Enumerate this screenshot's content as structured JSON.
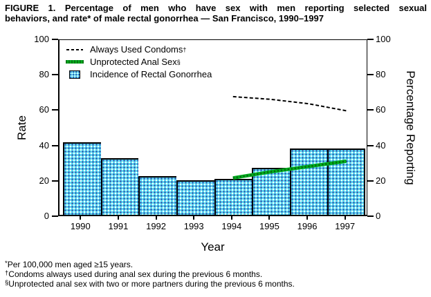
{
  "title": {
    "line1": "FIGURE 1. Percentage of men who have sex with men reporting selected sexual",
    "line2": "behaviors, and rate* of male rectal gonorrhea — San Francisco, 1990–1997"
  },
  "chart_data": {
    "type": "combo",
    "title": "FIGURE 1. Percentage of men who have sex with men reporting selected sexual behaviors, and rate* of male rectal gonorrhea — San Francisco, 1990–1997",
    "categories": [
      "1990",
      "1991",
      "1992",
      "1993",
      "1994",
      "1995",
      "1996",
      "1997"
    ],
    "bar_series": {
      "name": "Incidence of Rectal Gonorrhea",
      "axis": "left",
      "values": [
        41,
        32,
        22,
        19.5,
        20.5,
        26.5,
        37.5,
        37.5
      ],
      "fill_color": "#5ddcf2",
      "hatch_dot_colors": [
        "#2a36a0",
        "#ffffff"
      ]
    },
    "line_series": [
      {
        "name": "Always Used Condoms",
        "footnote_symbol": "†",
        "axis": "right",
        "x": [
          "1994",
          "1995",
          "1996",
          "1997"
        ],
        "values": [
          68,
          66.5,
          64,
          60
        ],
        "style": "dashed",
        "color": "#000000"
      },
      {
        "name": "Unprotected Anal Sex",
        "footnote_symbol": "§",
        "axis": "right",
        "x": [
          "1994",
          "1995",
          "1996",
          "1997"
        ],
        "values": [
          22,
          25.5,
          28.5,
          31.5
        ],
        "style": "solid-thick",
        "color": "#00ac1e",
        "texture_color": "#085f10"
      }
    ],
    "left_axis": {
      "label": "Rate",
      "min": 0,
      "max": 100,
      "ticks": [
        0,
        20,
        40,
        60,
        80,
        100
      ]
    },
    "right_axis": {
      "label": "Percentage Reporting",
      "min": 0,
      "max": 100,
      "ticks": [
        0,
        20,
        40,
        60,
        80,
        100
      ]
    },
    "x_axis": {
      "label": "Year"
    },
    "legend": {
      "position": "top-left-inside",
      "items": [
        {
          "label": "Always Used Condoms",
          "sup": "†",
          "swatch": "dashed-line"
        },
        {
          "label": "Unprotected Anal Sex",
          "sup": "§",
          "swatch": "green-line"
        },
        {
          "label": "Incidence of Rectal Gonorrhea",
          "sup": "",
          "swatch": "hatched-box"
        }
      ]
    },
    "grid": false
  },
  "footnotes": [
    {
      "sup": "*",
      "text": "Per 100,000 men aged ≥15 years."
    },
    {
      "sup": "†",
      "text": "Condoms always used during anal sex during the previous 6 months."
    },
    {
      "sup": "§",
      "text": "Unprotected anal sex with two or more partners during the previous 6 months."
    }
  ]
}
